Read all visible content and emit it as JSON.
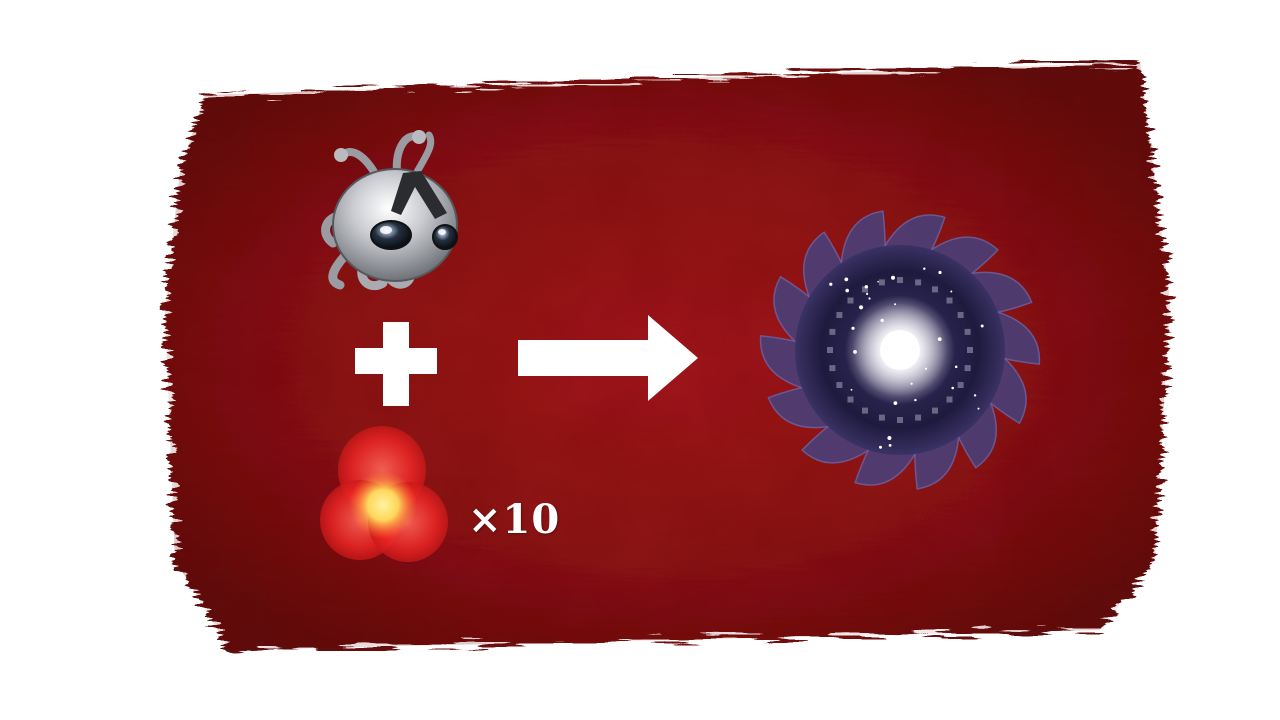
{
  "recipe": {
    "ingredients": [
      {
        "icon": "alien-creature-icon"
      },
      {
        "icon": "red-energy-orb-icon",
        "quantity_label": "×10"
      }
    ],
    "operator_icon": "plus-icon",
    "arrow_icon": "arrow-right-icon",
    "result": {
      "icon": "black-hole-vortex-icon"
    }
  },
  "colors": {
    "background_red": "#8e1316",
    "alien_silver": "#c9cbd0",
    "orb_red": "#ee2525",
    "orb_core": "#ffd65a",
    "vortex_purple": "#4a3f78",
    "vortex_core": "#ffffff",
    "symbols": "#ffffff"
  }
}
